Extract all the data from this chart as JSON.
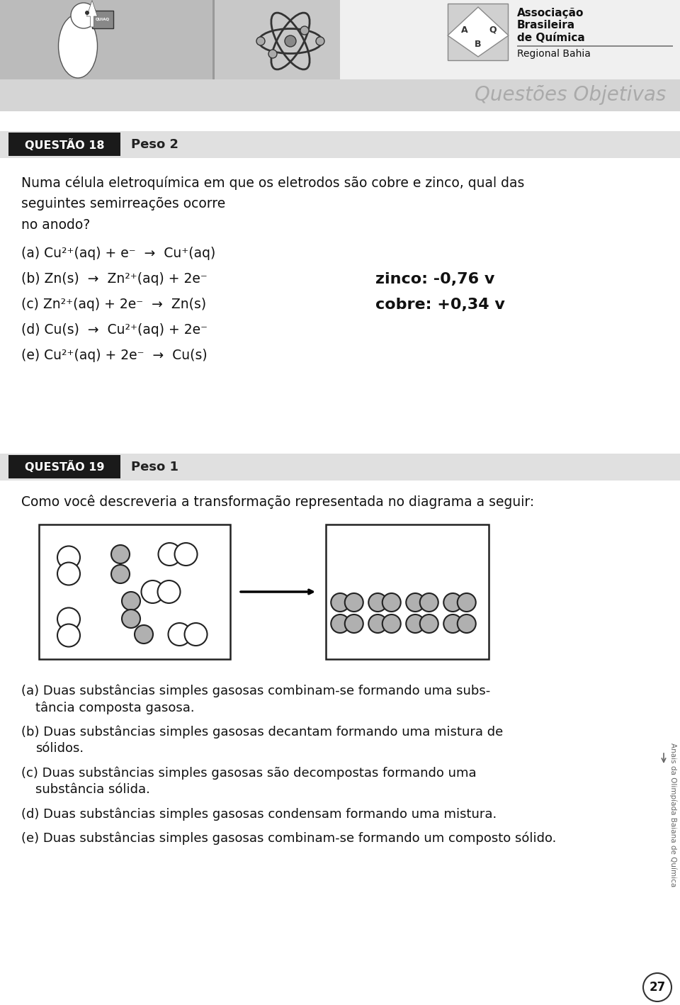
{
  "title_bar": "Questões Objetivas",
  "q18_label": "QUESTÃO 18",
  "q18_peso": "Peso 2",
  "q18_text1": "Numa célula eletroquímica em que os eletrodos são cobre e zinco, qual das",
  "q18_text2": "seguintes semirreações ocorre",
  "q18_text3": "no anodo?",
  "q18_a": "(a) Cu²⁺(aq) + e⁻  →  Cu⁺(aq)",
  "q18_b": "(b) Zn(s)  →  Zn²⁺(aq) + 2e⁻",
  "q18_c": "(c) Zn²⁺(aq) + 2e⁻  →  Zn(s)",
  "q18_d": "(d) Cu(s)  →  Cu²⁺(aq) + 2e⁻",
  "q18_e": "(e) Cu²⁺(aq) + 2e⁻  →  Cu(s)",
  "q18_info1": "zinco: -0,76 v",
  "q18_info2": "cobre: +0,34 v",
  "q19_label": "QUESTÃO 19",
  "q19_peso": "Peso 1",
  "q19_text": "Como você descreveria a transformação representada no diagrama a seguir:",
  "side_text": "Anais da Olimpíada Baiana de Química",
  "page_number": "27",
  "header_gray": "#c8c8c8",
  "subbar_gray": "#c0c0c0",
  "section_gray": "#e0e0e0",
  "black_box": "#1a1a1a",
  "text_color": "#111111",
  "title_color": "#a0a0a0"
}
